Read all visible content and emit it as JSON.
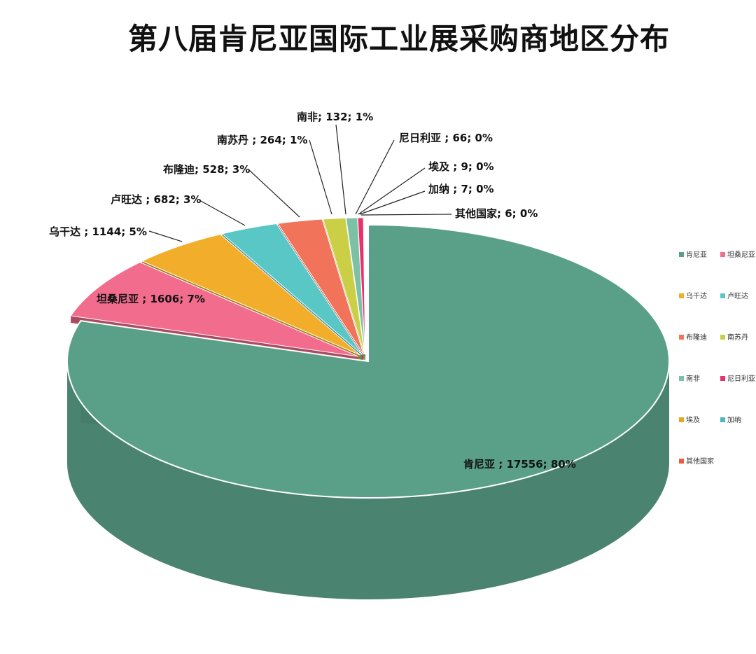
{
  "chart_data": {
    "type": "pie",
    "title": "第八届肯尼亚国际工业展采购商地区分布",
    "categories": [
      "肯尼亚",
      "坦桑尼亚",
      "乌干达",
      "卢旺达",
      "布隆迪",
      "南苏丹",
      "南非",
      "尼日利亚",
      "埃及",
      "加纳",
      "其他国家"
    ],
    "values": [
      17556,
      1606,
      1144,
      682,
      528,
      264,
      132,
      66,
      9,
      7,
      6
    ],
    "labels": [
      "肯尼亚 ; 17556; 80%",
      "坦桑尼亚 ; 1606; 7%",
      "乌干达 ; 1144; 5%",
      "卢旺达 ; 682; 3%",
      "布隆迪; 528; 3%",
      "南苏丹 ; 264; 1%",
      "南非; 132; 1%",
      "尼日利亚 ; 66; 0%",
      "埃及 ; 9; 0%",
      "加纳 ; 7; 0%",
      "其他国家; 6; 0%"
    ],
    "colors": [
      "#5aa088",
      "#f26c8e",
      "#f2ae2a",
      "#5ac7c7",
      "#f0735a",
      "#cbcf45",
      "#7cc0a5",
      "#e8326d",
      "#e8a620",
      "#4ab6c0",
      "#f05a3a"
    ],
    "legend_position": "right",
    "style": "3d-exploded"
  }
}
